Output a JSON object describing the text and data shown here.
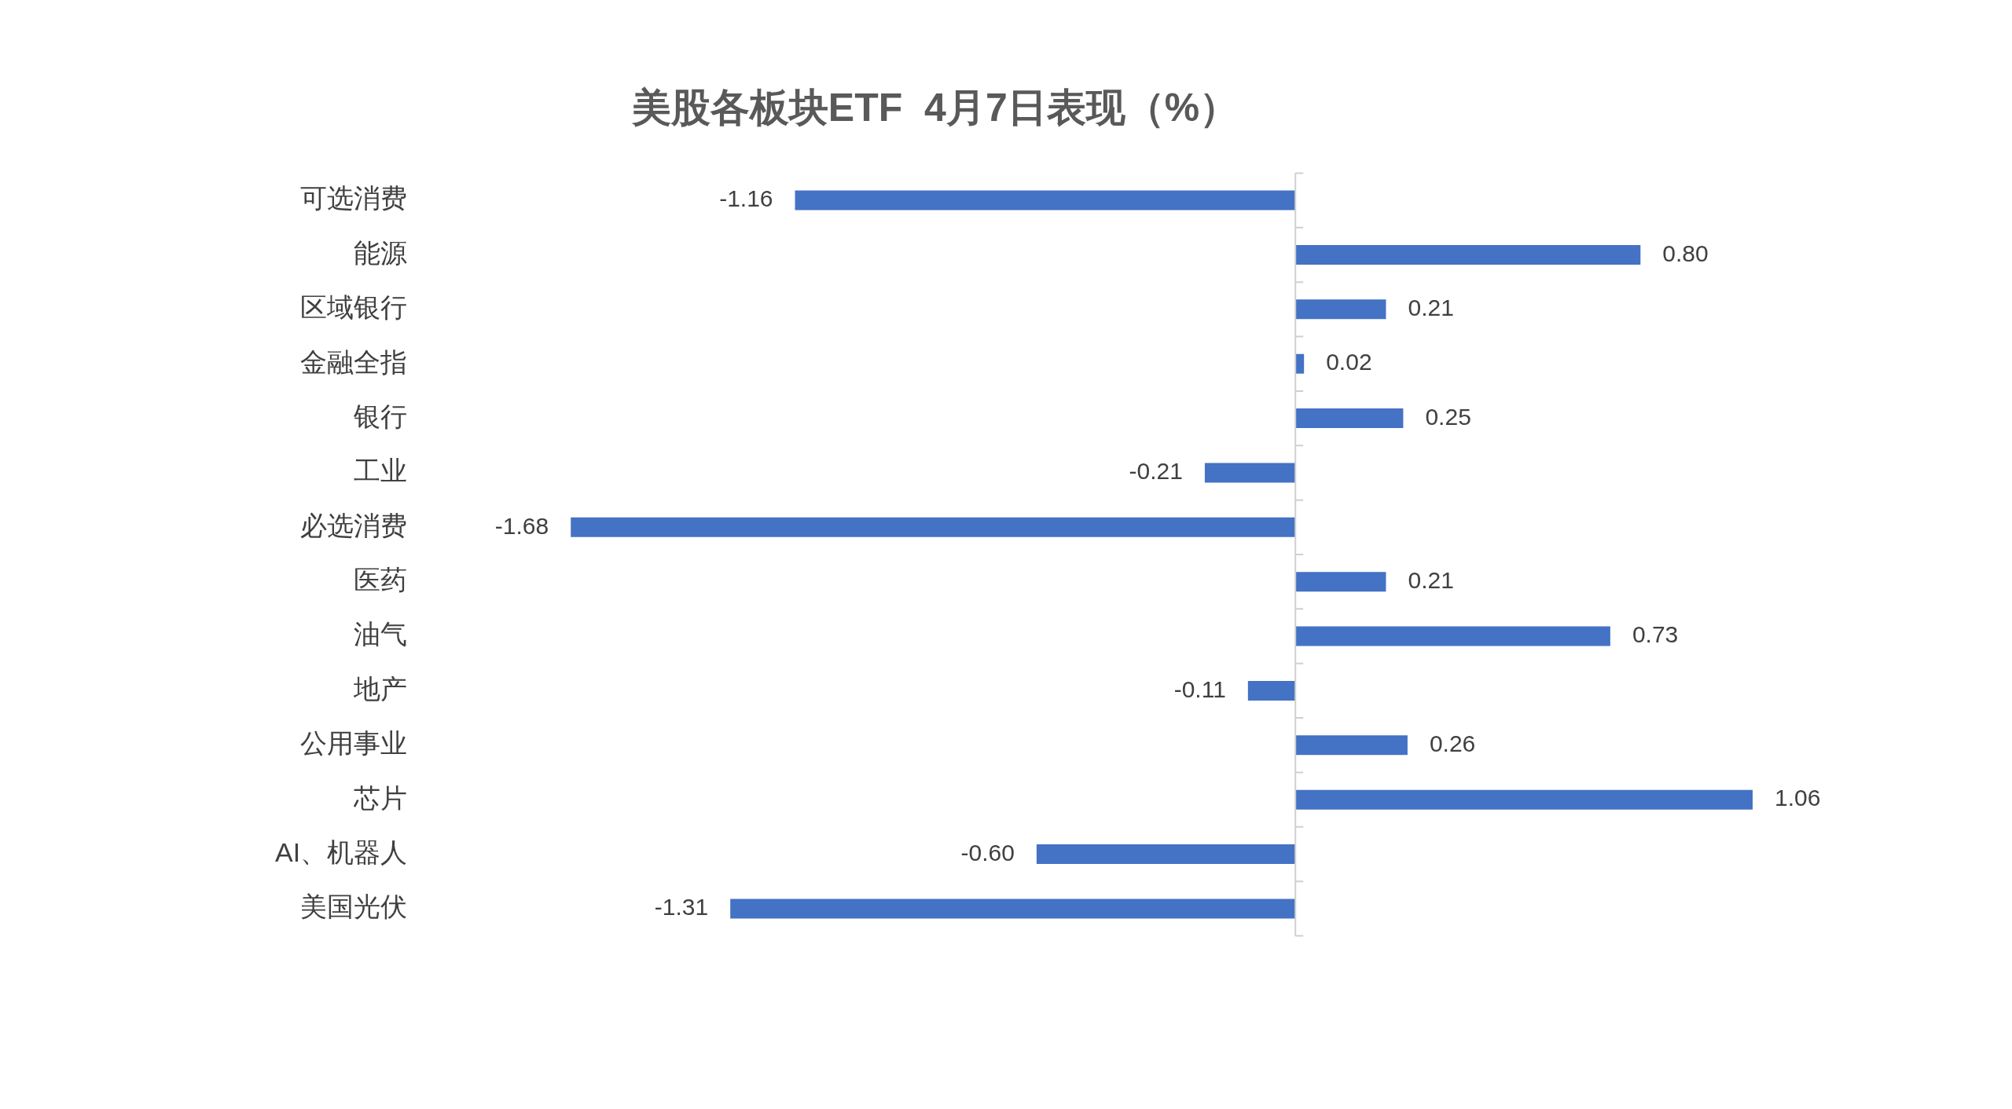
{
  "chart_data": {
    "type": "bar",
    "orientation": "horizontal",
    "title": "美股各板块ETF  4月7日表现（%）",
    "categories": [
      "可选消费",
      "能源",
      "区域银行",
      "金融全指",
      "银行",
      "工业",
      "必选消费",
      "医药",
      "油气",
      "地产",
      "公用事业",
      "芯片",
      "AI、机器人",
      "美国光伏"
    ],
    "values": [
      -1.16,
      0.8,
      0.21,
      0.02,
      0.25,
      -0.21,
      -1.68,
      0.21,
      0.73,
      -0.11,
      0.26,
      1.06,
      -0.6,
      -1.31
    ],
    "value_labels": [
      "-1.16",
      "0.80",
      "0.21",
      "0.02",
      "0.25",
      "-0.21",
      "-1.68",
      "0.21",
      "0.73",
      "-0.11",
      "0.26",
      "1.06",
      "-0.60",
      "-1.31"
    ],
    "color": "#4472c4",
    "legend": false
  }
}
